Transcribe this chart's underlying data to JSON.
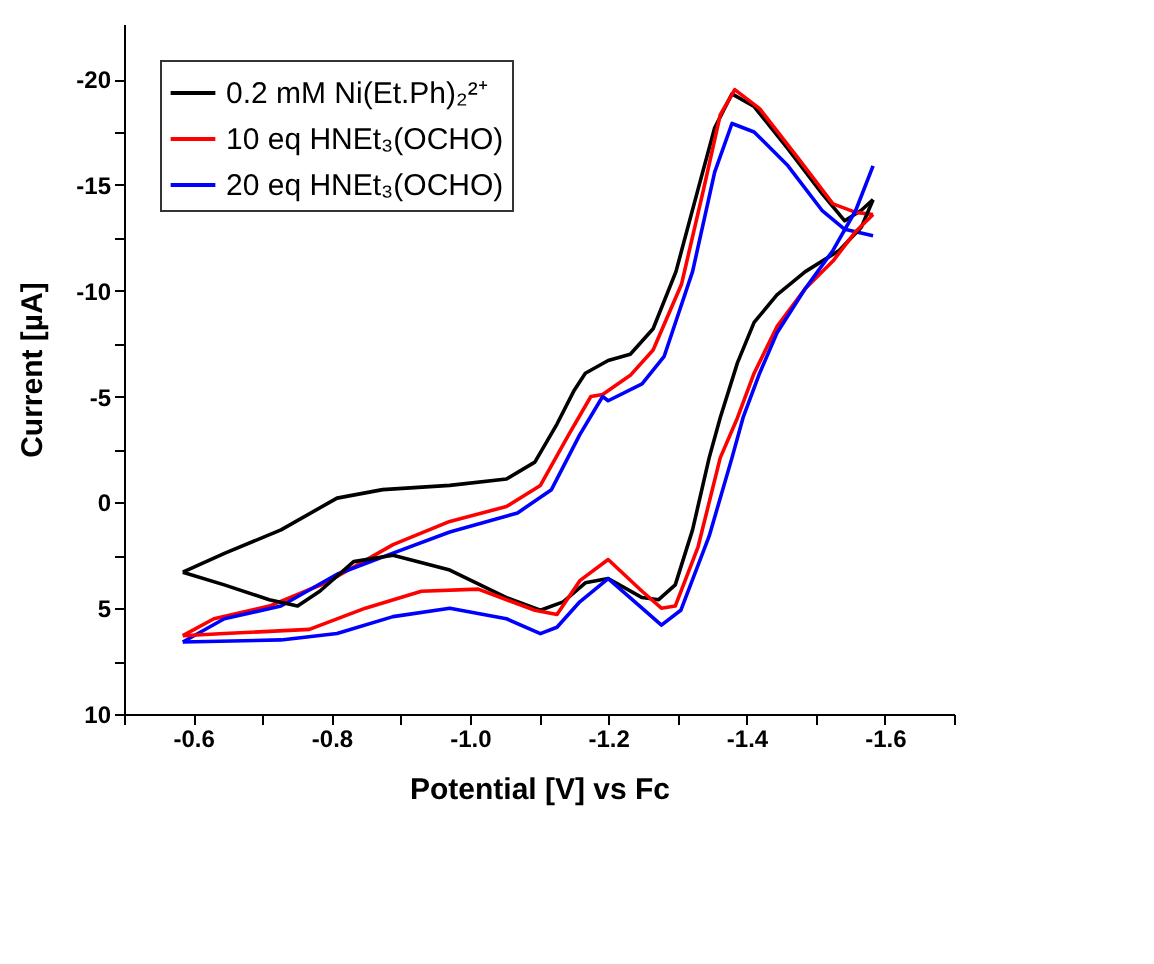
{
  "chart_data": {
    "type": "line",
    "xlabel": "Potential [V] vs Fc",
    "ylabel": "Current [µA]",
    "xlim": [
      -0.5,
      -1.7
    ],
    "ylim": [
      10,
      -22.6
    ],
    "xticks": [
      {
        "value": -0.5,
        "label": null
      },
      -0.6,
      {
        "value": -0.7,
        "label": null
      },
      -0.8,
      {
        "value": -0.9,
        "label": null
      },
      {
        "value": -1.0,
        "label": "-1.0"
      },
      {
        "value": -1.1,
        "label": null
      },
      -1.2,
      {
        "value": -1.3,
        "label": null
      },
      -1.4,
      {
        "value": -1.5,
        "label": null
      },
      -1.6,
      {
        "value": -1.7,
        "label": null
      }
    ],
    "yticks": [
      10,
      {
        "value": 7.5,
        "label": null
      },
      5,
      {
        "value": 2.5,
        "label": null
      },
      0,
      {
        "value": -2.5,
        "label": null
      },
      -5,
      {
        "value": -7.5,
        "label": null
      },
      -10,
      {
        "value": -12.5,
        "label": null
      },
      -15,
      {
        "value": -17.5,
        "label": null
      },
      -20
    ],
    "grid": false,
    "legend": "top left",
    "marker": "none",
    "line_style": "solid",
    "series": [
      {
        "name": "0.2 mM Ni(Et.Ph)₂²⁺",
        "color": "#000000",
        "x": [
          -0.585,
          -0.646,
          -0.727,
          -0.808,
          -0.874,
          -0.971,
          -1.053,
          -1.094,
          -1.126,
          -1.151,
          -1.167,
          -1.2,
          -1.232,
          -1.265,
          -1.298,
          -1.33,
          -1.354,
          -1.379,
          -1.411,
          -1.46,
          -1.509,
          -1.542,
          -1.566,
          -1.583
        ],
        "values": [
          3.3,
          2.4,
          1.3,
          -0.2,
          -0.6,
          -0.8,
          -1.1,
          -1.9,
          -3.7,
          -5.3,
          -6.1,
          -6.7,
          -7.0,
          -8.2,
          -10.9,
          -14.8,
          -17.7,
          -19.3,
          -18.7,
          -16.7,
          -14.6,
          -13.3,
          -13.8,
          -14.3
        ]
      },
      {
        "name": "10 eq HNEt₃(OCHO)",
        "color": "#ff0000",
        "x": [
          -0.585,
          -0.63,
          -0.71,
          -0.792,
          -0.889,
          -0.971,
          -1.053,
          -1.102,
          -1.143,
          -1.175,
          -1.192,
          -1.232,
          -1.265,
          -1.306,
          -1.338,
          -1.362,
          -1.383,
          -1.419,
          -1.476,
          -1.525,
          -1.558,
          -1.583
        ],
        "values": [
          6.3,
          5.5,
          4.9,
          3.8,
          2.0,
          0.9,
          0.2,
          -0.8,
          -3.2,
          -5.0,
          -5.1,
          -6.0,
          -7.2,
          -10.3,
          -14.8,
          -18.3,
          -19.5,
          -18.6,
          -16.2,
          -14.1,
          -13.7,
          -13.6
        ]
      },
      {
        "name": "20 eq HNEt₃(OCHO)",
        "color": "#0000ff",
        "x": [
          -0.585,
          -0.645,
          -0.727,
          -0.808,
          -0.889,
          -0.971,
          -1.069,
          -1.118,
          -1.159,
          -1.192,
          -1.2,
          -1.249,
          -1.281,
          -1.322,
          -1.354,
          -1.379,
          -1.411,
          -1.46,
          -1.509,
          -1.542,
          -1.583
        ],
        "values": [
          6.6,
          5.5,
          4.9,
          3.4,
          2.4,
          1.4,
          0.5,
          -0.6,
          -3.2,
          -5.0,
          -4.8,
          -5.6,
          -6.9,
          -10.9,
          -15.6,
          -17.9,
          -17.5,
          -15.9,
          -13.8,
          -12.9,
          -12.6
        ]
      },
      {
        "color": "#000000",
        "x": [
          -1.583,
          -1.566,
          -1.534,
          -1.485,
          -1.444,
          -1.411,
          -1.387,
          -1.362,
          -1.346,
          -1.322,
          -1.297,
          -1.273,
          -1.249,
          -1.2,
          -1.167,
          -1.135,
          -1.102,
          -1.053,
          -0.971,
          -0.889,
          -0.832,
          -0.783,
          -0.751,
          -0.71,
          -0.645,
          -0.585
        ],
        "values": [
          -14.3,
          -13.0,
          -11.9,
          -10.9,
          -9.8,
          -8.5,
          -6.6,
          -4.0,
          -2.1,
          1.3,
          3.9,
          4.6,
          4.5,
          3.6,
          3.8,
          4.7,
          5.1,
          4.5,
          3.2,
          2.5,
          2.8,
          4.2,
          4.9,
          4.6,
          3.9,
          3.3
        ]
      },
      {
        "color": "#ff0000",
        "x": [
          -1.583,
          -1.558,
          -1.525,
          -1.485,
          -1.444,
          -1.411,
          -1.387,
          -1.362,
          -1.33,
          -1.297,
          -1.277,
          -1.249,
          -1.2,
          -1.159,
          -1.126,
          -1.094,
          -1.012,
          -0.93,
          -0.849,
          -0.768,
          -0.645,
          -0.585
        ],
        "values": [
          -13.6,
          -12.8,
          -11.4,
          -10.1,
          -8.3,
          -6.1,
          -4.0,
          -2.1,
          2.1,
          4.9,
          5.0,
          4.2,
          2.7,
          3.7,
          5.3,
          5.1,
          4.1,
          4.2,
          5.0,
          6.0,
          6.2,
          6.3
        ]
      },
      {
        "color": "#0000ff",
        "x": [
          -1.583,
          -1.558,
          -1.525,
          -1.485,
          -1.444,
          -1.419,
          -1.395,
          -1.379,
          -1.346,
          -1.305,
          -1.277,
          -1.249,
          -1.2,
          -1.159,
          -1.126,
          -1.102,
          -1.053,
          -0.971,
          -0.889,
          -0.808,
          -0.727,
          -0.585
        ],
        "values": [
          -15.9,
          -13.8,
          -11.9,
          -10.1,
          -8.0,
          -6.1,
          -4.0,
          -2.1,
          1.6,
          5.1,
          5.8,
          5.0,
          3.6,
          4.7,
          5.9,
          6.2,
          5.5,
          5.0,
          5.4,
          6.2,
          6.5,
          6.6
        ]
      }
    ]
  }
}
